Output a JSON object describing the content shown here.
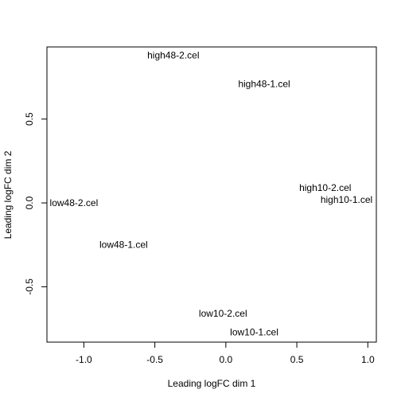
{
  "chart_data": {
    "type": "scatter",
    "title": "",
    "xlabel": "Leading logFC dim 1",
    "ylabel": "Leading logFC dim 2",
    "xlim": [
      -1.26,
      1.06
    ],
    "ylim": [
      -0.83,
      0.93
    ],
    "xticks": [
      {
        "value": -1.0,
        "label": "-1.0"
      },
      {
        "value": -0.5,
        "label": "-0.5"
      },
      {
        "value": 0.0,
        "label": "0.0"
      },
      {
        "value": 0.5,
        "label": "0.5"
      },
      {
        "value": 1.0,
        "label": "1.0"
      }
    ],
    "yticks": [
      {
        "value": -0.5,
        "label": "-0.5"
      },
      {
        "value": 0.0,
        "label": "0.0"
      },
      {
        "value": 0.5,
        "label": "0.5"
      }
    ],
    "points": [
      {
        "label": "high48-2.cel",
        "x": -0.37,
        "y": 0.88
      },
      {
        "label": "high48-1.cel",
        "x": 0.27,
        "y": 0.71
      },
      {
        "label": "high10-2.cel",
        "x": 0.7,
        "y": 0.09
      },
      {
        "label": "high10-1.cel",
        "x": 0.85,
        "y": 0.02
      },
      {
        "label": "low48-2.cel",
        "x": -1.07,
        "y": 0.0
      },
      {
        "label": "low48-1.cel",
        "x": -0.72,
        "y": -0.25
      },
      {
        "label": "low10-2.cel",
        "x": -0.02,
        "y": -0.66
      },
      {
        "label": "low10-1.cel",
        "x": 0.2,
        "y": -0.77
      }
    ]
  }
}
